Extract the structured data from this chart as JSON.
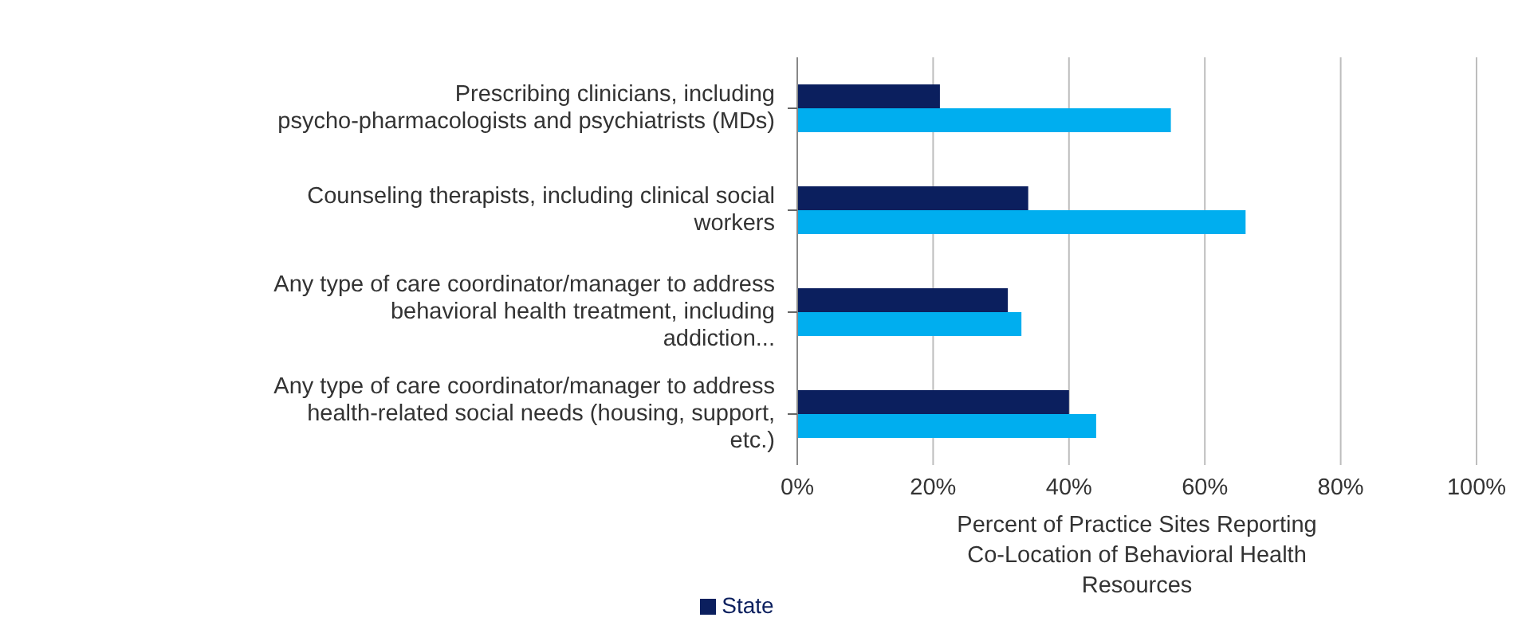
{
  "chart_data": {
    "type": "bar",
    "orientation": "horizontal",
    "categories": [
      "Prescribing clinicians, including psycho-pharmacologists and psychiatrists (MDs)",
      "Counseling therapists, including clinical social workers",
      "Any type of care coordinator/manager  to address behavioral health treatment, including addiction...",
      "Any type of care coordinator/manager to address health-related social needs (housing, support, etc.)"
    ],
    "series": [
      {
        "name": "State",
        "color": "#0b1f5e",
        "values": [
          21,
          34,
          31,
          40
        ]
      },
      {
        "color": "#00aeef",
        "values": [
          55,
          66,
          33,
          44
        ]
      }
    ],
    "xlabel": "Percent of Practice Sites Reporting Co-Location of Behavioral Health Resources",
    "xlim": [
      0,
      100
    ],
    "xticks": [
      {
        "value": 0,
        "label": "0%"
      },
      {
        "value": 20,
        "label": "20%"
      },
      {
        "value": 40,
        "label": "40%"
      },
      {
        "value": 60,
        "label": "60%"
      },
      {
        "value": 80,
        "label": "80%"
      },
      {
        "value": 100,
        "label": "100%"
      }
    ],
    "grid": "x",
    "legend": "bottom"
  }
}
